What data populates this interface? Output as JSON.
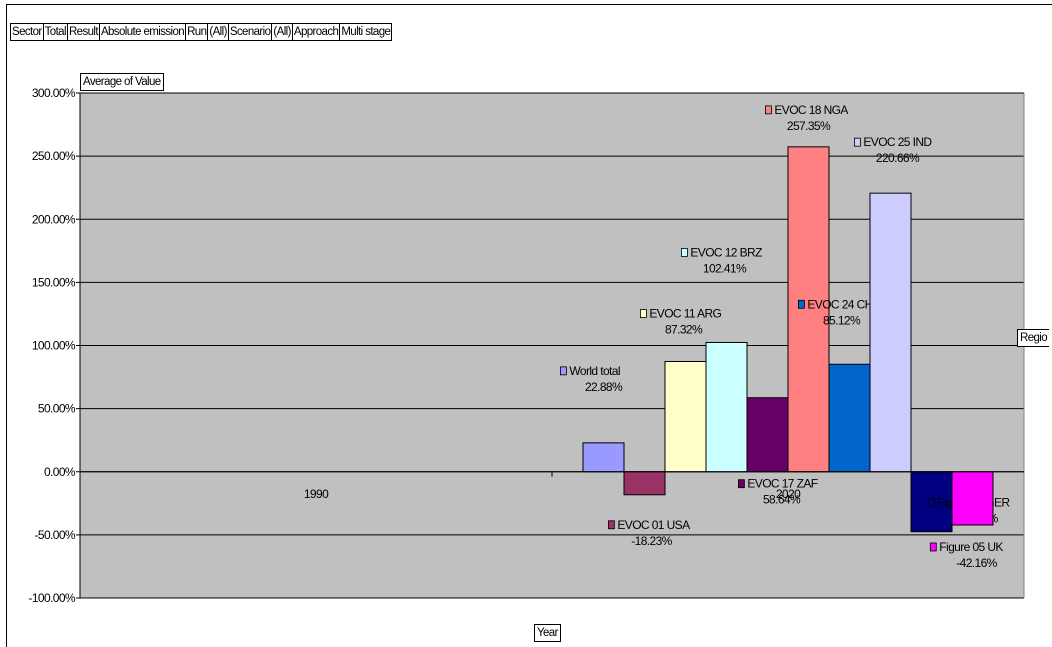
{
  "pivot_filters": [
    {
      "label": "Sector"
    },
    {
      "label": "Total"
    },
    {
      "label": "Result"
    },
    {
      "label": "Absolute emission"
    },
    {
      "label": "Run"
    },
    {
      "label": "(All)"
    },
    {
      "label": "Scenario"
    },
    {
      "label": "(All)"
    },
    {
      "label": "Approach"
    },
    {
      "label": "Multi stage"
    }
  ],
  "data_field_button": "Average of Value",
  "series_field_button": "Regio",
  "category_field_button": "Year",
  "chart_data": {
    "type": "bar",
    "title": "",
    "categories": [
      "1990",
      "2020"
    ],
    "ylim": [
      -100,
      300
    ],
    "ytick_step": 50,
    "grid": true,
    "background": "#c0c0c0",
    "series": [
      {
        "name": "World total",
        "values": [
          null,
          22.88
        ],
        "label": "22.88%",
        "color": "#9999ff"
      },
      {
        "name": "EVOC 01 USA",
        "values": [
          null,
          -18.23
        ],
        "label": "-18.23%",
        "color": "#993366"
      },
      {
        "name": "EVOC 11 ARG",
        "values": [
          null,
          87.32
        ],
        "label": "87.32%",
        "color": "#ffffcc"
      },
      {
        "name": "EVOC 12 BRZ",
        "values": [
          null,
          102.41
        ],
        "label": "102.41%",
        "color": "#ccffff"
      },
      {
        "name": "EVOC 17 ZAF",
        "values": [
          null,
          58.64
        ],
        "label": "58.64%",
        "color": "#660066"
      },
      {
        "name": "EVOC 18 NGA",
        "values": [
          null,
          257.35
        ],
        "label": "257.35%",
        "color": "#ff8080"
      },
      {
        "name": "EVOC 24 CHN",
        "values": [
          null,
          85.12
        ],
        "label": "85.12%",
        "color": "#0066cc"
      },
      {
        "name": "EVOC 25 IND",
        "values": [
          null,
          220.66
        ],
        "label": "220.66%",
        "color": "#ccccff"
      },
      {
        "name": "Figure 04 GER",
        "values": [
          null,
          -47.48
        ],
        "label": "-47.48%",
        "color": "#000080"
      },
      {
        "name": "Figure 05 UK",
        "values": [
          null,
          -42.16
        ],
        "label": "-42.16%",
        "color": "#ff00ff"
      }
    ],
    "ytick_labels": [
      "-100.00%",
      "-50.00%",
      "0.00%",
      "50.00%",
      "100.00%",
      "150.00%",
      "200.00%",
      "250.00%",
      "300.00%"
    ]
  }
}
